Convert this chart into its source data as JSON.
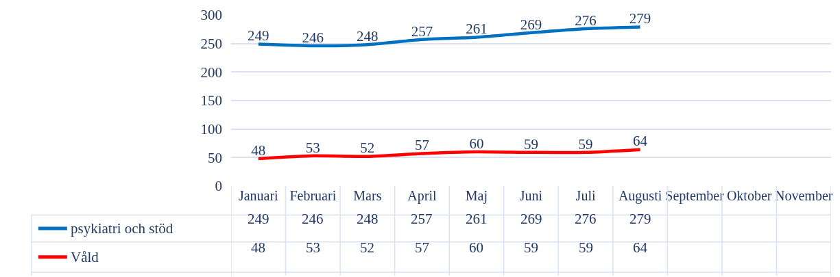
{
  "chart_data": {
    "type": "line",
    "categories": [
      "Januari",
      "Februari",
      "Mars",
      "April",
      "Maj",
      "Juni",
      "Juli",
      "Augusti",
      "September",
      "Oktober",
      "November"
    ],
    "series": [
      {
        "name": "psykiatri och stöd",
        "color": "#0070c0",
        "values": [
          249,
          246,
          248,
          257,
          261,
          269,
          276,
          279,
          null,
          null,
          null
        ],
        "value_labels": [
          "249",
          "246",
          "248",
          "257",
          "261",
          "269",
          "276",
          "279",
          null,
          null,
          null
        ]
      },
      {
        "name": "Våld",
        "color": "#ff0000",
        "values": [
          48,
          53,
          52,
          57,
          60,
          59,
          59,
          64,
          null,
          null,
          null
        ],
        "value_labels": [
          "48",
          "53",
          "52",
          "57",
          "60",
          "59",
          "59",
          "64",
          null,
          null,
          null
        ]
      }
    ],
    "ylim": [
      0,
      300
    ],
    "yticks": [
      0,
      50,
      100,
      150,
      200,
      250,
      300
    ],
    "annotations": [
      "249",
      "246",
      "248",
      "257",
      "261",
      "269",
      "276",
      "279",
      "48",
      "53",
      "52",
      "57",
      "60",
      "59",
      "59",
      "64"
    ],
    "grid": "y",
    "legend": "bottom",
    "marker": "none",
    "line_style": "solid"
  }
}
